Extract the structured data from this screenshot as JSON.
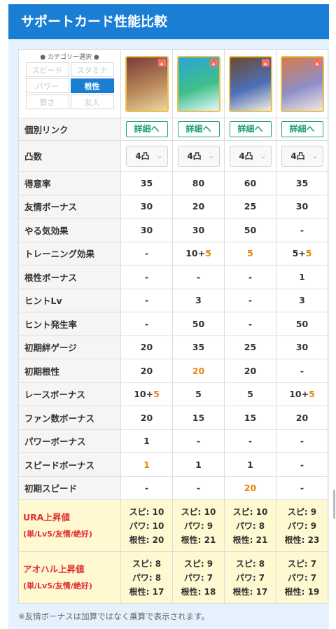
{
  "header": {
    "title": "サポートカード性能比較"
  },
  "category": {
    "title": "● カテゴリー選択 ●",
    "options": [
      "スピード",
      "スタミナ",
      "パワー",
      "根性",
      "賢さ",
      "友人"
    ],
    "selected": "根性"
  },
  "cards": [
    {
      "detail_label": "詳細へ",
      "limit_break": "4凸",
      "colors": [
        "#7b3a3a",
        "#b8885a",
        "#efd6a0"
      ]
    },
    {
      "detail_label": "詳細へ",
      "limit_break": "4凸",
      "colors": [
        "#2aa4d8",
        "#3fbf8a",
        "#e9f7ff"
      ]
    },
    {
      "detail_label": "詳細へ",
      "limit_break": "4凸",
      "colors": [
        "#6d4a2c",
        "#4d6fb8",
        "#f7eedc"
      ]
    },
    {
      "detail_label": "詳細へ",
      "limit_break": "4凸",
      "colors": [
        "#d87a4a",
        "#8e8ec8",
        "#f4e8e0"
      ]
    }
  ],
  "rows": [
    {
      "label": "個別リンク",
      "type": "detail"
    },
    {
      "label": "凸数",
      "type": "lb"
    },
    {
      "label": "得意率",
      "values": [
        {
          "t": "35"
        },
        {
          "t": "80"
        },
        {
          "t": "60"
        },
        {
          "t": "35"
        }
      ]
    },
    {
      "label": "友情ボーナス",
      "values": [
        {
          "t": "30"
        },
        {
          "t": "20"
        },
        {
          "t": "25"
        },
        {
          "t": "30"
        }
      ]
    },
    {
      "label": "やる気効果",
      "values": [
        {
          "t": "30"
        },
        {
          "t": "30"
        },
        {
          "t": "50"
        },
        {
          "t": "-"
        }
      ]
    },
    {
      "label": "トレーニング効果",
      "values": [
        {
          "t": "-"
        },
        {
          "t": "10+",
          "h": "5"
        },
        {
          "t": "",
          "h": "5"
        },
        {
          "t": "5+",
          "h": "5"
        }
      ]
    },
    {
      "label": "根性ボーナス",
      "values": [
        {
          "t": "-"
        },
        {
          "t": "-"
        },
        {
          "t": "-"
        },
        {
          "t": "1"
        }
      ]
    },
    {
      "label": "ヒントLv",
      "values": [
        {
          "t": "-"
        },
        {
          "t": "3"
        },
        {
          "t": "-"
        },
        {
          "t": "3"
        }
      ]
    },
    {
      "label": "ヒント発生率",
      "values": [
        {
          "t": "-"
        },
        {
          "t": "50"
        },
        {
          "t": "-"
        },
        {
          "t": "50"
        }
      ]
    },
    {
      "label": "初期絆ゲージ",
      "values": [
        {
          "t": "20"
        },
        {
          "t": "35"
        },
        {
          "t": "25"
        },
        {
          "t": "30"
        }
      ]
    },
    {
      "label": "初期根性",
      "values": [
        {
          "t": "20"
        },
        {
          "t": "",
          "h": "20"
        },
        {
          "t": "20"
        },
        {
          "t": "-"
        }
      ]
    },
    {
      "label": "レースボーナス",
      "values": [
        {
          "t": "10+",
          "h": "5"
        },
        {
          "t": "5"
        },
        {
          "t": "5"
        },
        {
          "t": "10+",
          "h": "5"
        }
      ]
    },
    {
      "label": "ファン数ボーナス",
      "values": [
        {
          "t": "20"
        },
        {
          "t": "15"
        },
        {
          "t": "15"
        },
        {
          "t": "20"
        }
      ]
    },
    {
      "label": "パワーボーナス",
      "values": [
        {
          "t": "1"
        },
        {
          "t": "-"
        },
        {
          "t": "-"
        },
        {
          "t": "-"
        }
      ]
    },
    {
      "label": "スピードボーナス",
      "values": [
        {
          "t": "",
          "h": "1"
        },
        {
          "t": "1"
        },
        {
          "t": "1"
        },
        {
          "t": "-"
        }
      ]
    },
    {
      "label": "初期スピード",
      "values": [
        {
          "t": "-"
        },
        {
          "t": "-"
        },
        {
          "t": "",
          "h": "20"
        },
        {
          "t": "-"
        }
      ]
    }
  ],
  "stat_rows": [
    {
      "label": "URA上昇値",
      "sub": "(単/Lv5/友情/絶好)",
      "cards": [
        [
          "スピ: 10",
          "パワ: 10",
          "根性: 20"
        ],
        [
          "スピ: 10",
          "パワ: 9",
          "根性: 21"
        ],
        [
          "スピ: 10",
          "パワ: 8",
          "根性: 21"
        ],
        [
          "スピ: 9",
          "パワ: 9",
          "根性: 23"
        ]
      ]
    },
    {
      "label": "アオハル上昇値",
      "sub": "(単/Lv5/友情/絶好)",
      "cards": [
        [
          "スピ: 8",
          "パワ: 8",
          "根性: 17"
        ],
        [
          "スピ: 9",
          "パワ: 7",
          "根性: 18"
        ],
        [
          "スピ: 8",
          "パワ: 7",
          "根性: 17"
        ],
        [
          "スピ: 7",
          "パワ: 7",
          "根性: 19"
        ]
      ]
    }
  ],
  "note": "※友情ボーナスは加算ではなく乗算で表示されます。"
}
